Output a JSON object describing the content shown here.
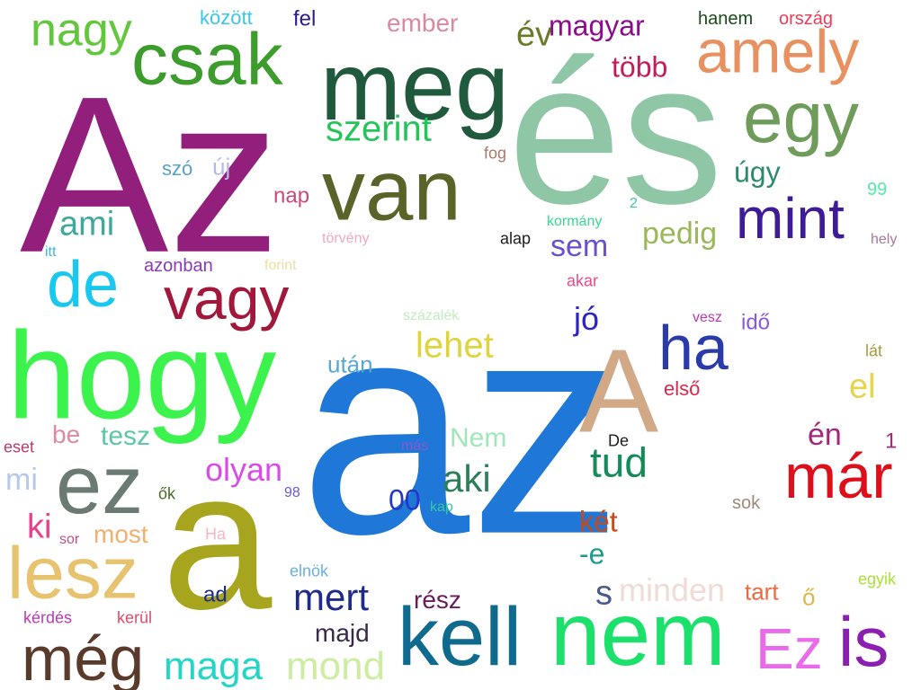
{
  "words": [
    {
      "text": "az",
      "color": "#1f77d8"
    },
    {
      "text": "és",
      "color": "#8fc7a6"
    },
    {
      "text": "Az",
      "color": "#931f7c"
    },
    {
      "text": "a",
      "color": "#a7a41e"
    },
    {
      "text": "hogy",
      "color": "#3cf24c"
    },
    {
      "text": "meg",
      "color": "#1f5a3c"
    },
    {
      "text": "van",
      "color": "#5a6328"
    },
    {
      "text": "nem",
      "color": "#1ce06c"
    },
    {
      "text": "kell",
      "color": "#0f6a8e"
    },
    {
      "text": "csak",
      "color": "#3c9c2c"
    },
    {
      "text": "egy",
      "color": "#6f9c5a"
    },
    {
      "text": "ez",
      "color": "#6b7a72"
    },
    {
      "text": "lesz",
      "color": "#e7c36f"
    },
    {
      "text": "A",
      "color": "#d2a986"
    },
    {
      "text": "is",
      "color": "#8a1fb1"
    },
    {
      "text": "még",
      "color": "#5a3a2a"
    },
    {
      "text": "amely",
      "color": "#e89160"
    },
    {
      "text": "de",
      "color": "#19c8ee"
    },
    {
      "text": "vagy",
      "color": "#a1183c"
    },
    {
      "text": "már",
      "color": "#dc0f1a"
    },
    {
      "text": "mint",
      "color": "#3f1c97"
    },
    {
      "text": "Ez",
      "color": "#ea6be9"
    },
    {
      "text": "ha",
      "color": "#2a3aa8"
    },
    {
      "text": "nagy",
      "color": "#62c73c"
    },
    {
      "text": "maga",
      "color": "#22d6c8"
    },
    {
      "text": "mond",
      "color": "#cdeea0"
    },
    {
      "text": "aki",
      "color": "#2c7f5a"
    },
    {
      "text": "tud",
      "color": "#158a5a"
    },
    {
      "text": "mert",
      "color": "#1f2a8a"
    },
    {
      "text": "szerint",
      "color": "#24c45a"
    },
    {
      "text": "lehet",
      "color": "#dfd43c"
    },
    {
      "text": "olyan",
      "color": "#d84be8"
    },
    {
      "text": "ami",
      "color": "#3fa89c"
    },
    {
      "text": "év",
      "color": "#6a7a28"
    },
    {
      "text": "magyar",
      "color": "#8c0c8c"
    },
    {
      "text": "több",
      "color": "#c31c5a"
    },
    {
      "text": "sem",
      "color": "#6c4fce"
    },
    {
      "text": "pedig",
      "color": "#9ab85a"
    },
    {
      "text": "ki",
      "color": "#e8408a"
    },
    {
      "text": "mi",
      "color": "#b8c8ea"
    },
    {
      "text": "én",
      "color": "#a3267c"
    },
    {
      "text": "el",
      "color": "#e8d44a"
    },
    {
      "text": "úgy",
      "color": "#2a8a6a"
    },
    {
      "text": "jó",
      "color": "#2c24c8"
    },
    {
      "text": "s",
      "color": "#4a5a8a"
    },
    {
      "text": "-e",
      "color": "#1c9a8a"
    },
    {
      "text": "minden",
      "color": "#efdcd4"
    },
    {
      "text": "tesz",
      "color": "#5ac8a8"
    },
    {
      "text": "Nem",
      "color": "#9ee8b8"
    },
    {
      "text": "ember",
      "color": "#d88aa0"
    },
    {
      "text": "két",
      "color": "#c84a18"
    },
    {
      "text": "00",
      "color": "#2438c8"
    },
    {
      "text": "rész",
      "color": "#6a1c5a"
    },
    {
      "text": "most",
      "color": "#f0b070"
    },
    {
      "text": "majd",
      "color": "#3a2a4a"
    },
    {
      "text": "után",
      "color": "#58a8d0"
    },
    {
      "text": "tart",
      "color": "#f2683c"
    },
    {
      "text": "ő",
      "color": "#dcb84a"
    },
    {
      "text": "új",
      "color": "#b8b8ec"
    },
    {
      "text": "nap",
      "color": "#c84a7c"
    },
    {
      "text": "idő",
      "color": "#8a58dc"
    },
    {
      "text": "be",
      "color": "#dc8aa0"
    },
    {
      "text": "ad",
      "color": "#1c2c8a"
    },
    {
      "text": "szó",
      "color": "#5aa0c8"
    },
    {
      "text": "között",
      "color": "#38c8e8"
    },
    {
      "text": "fel",
      "color": "#2c1c8a"
    },
    {
      "text": "hanem",
      "color": "#1c4a1c"
    },
    {
      "text": "ország",
      "color": "#e83c5a"
    },
    {
      "text": "első",
      "color": "#d8284a"
    },
    {
      "text": "azonban",
      "color": "#8a3ab8"
    },
    {
      "text": "99",
      "color": "#58e8a8"
    },
    {
      "text": "fog",
      "color": "#a87a6a"
    },
    {
      "text": "eset",
      "color": "#b83c6a"
    },
    {
      "text": "1",
      "color": "#a0287a"
    },
    {
      "text": "sok",
      "color": "#9a8a7a"
    },
    {
      "text": "elnök",
      "color": "#6ab0e0"
    },
    {
      "text": "egyik",
      "color": "#a8e038"
    },
    {
      "text": "kérdés",
      "color": "#b83ab8"
    },
    {
      "text": "kerül",
      "color": "#e04a6a"
    },
    {
      "text": "akar",
      "color": "#e84a8a"
    },
    {
      "text": "Ha",
      "color": "#f0b8c0"
    },
    {
      "text": "sor",
      "color": "#b8508a"
    },
    {
      "text": "ők",
      "color": "#4a6a28"
    },
    {
      "text": "98",
      "color": "#6a5ac8"
    },
    {
      "text": "kap",
      "color": "#38c8a0"
    },
    {
      "text": "lát",
      "color": "#a89a3a"
    },
    {
      "text": "vesz",
      "color": "#b838b8"
    },
    {
      "text": "alap",
      "color": "#1c1c1c"
    },
    {
      "text": "kormány",
      "color": "#38d890"
    },
    {
      "text": "törvény",
      "color": "#f0a8c0"
    },
    {
      "text": "forint",
      "color": "#e8e0a0"
    },
    {
      "text": "hely",
      "color": "#a8789a"
    },
    {
      "text": "itt",
      "color": "#3ab8e0"
    },
    {
      "text": "2",
      "color": "#38c8a0"
    },
    {
      "text": "százalék",
      "color": "#c0ecc0"
    },
    {
      "text": "más",
      "color": "#8a58c8"
    },
    {
      "text": "De",
      "color": "#1c1c1c"
    }
  ]
}
